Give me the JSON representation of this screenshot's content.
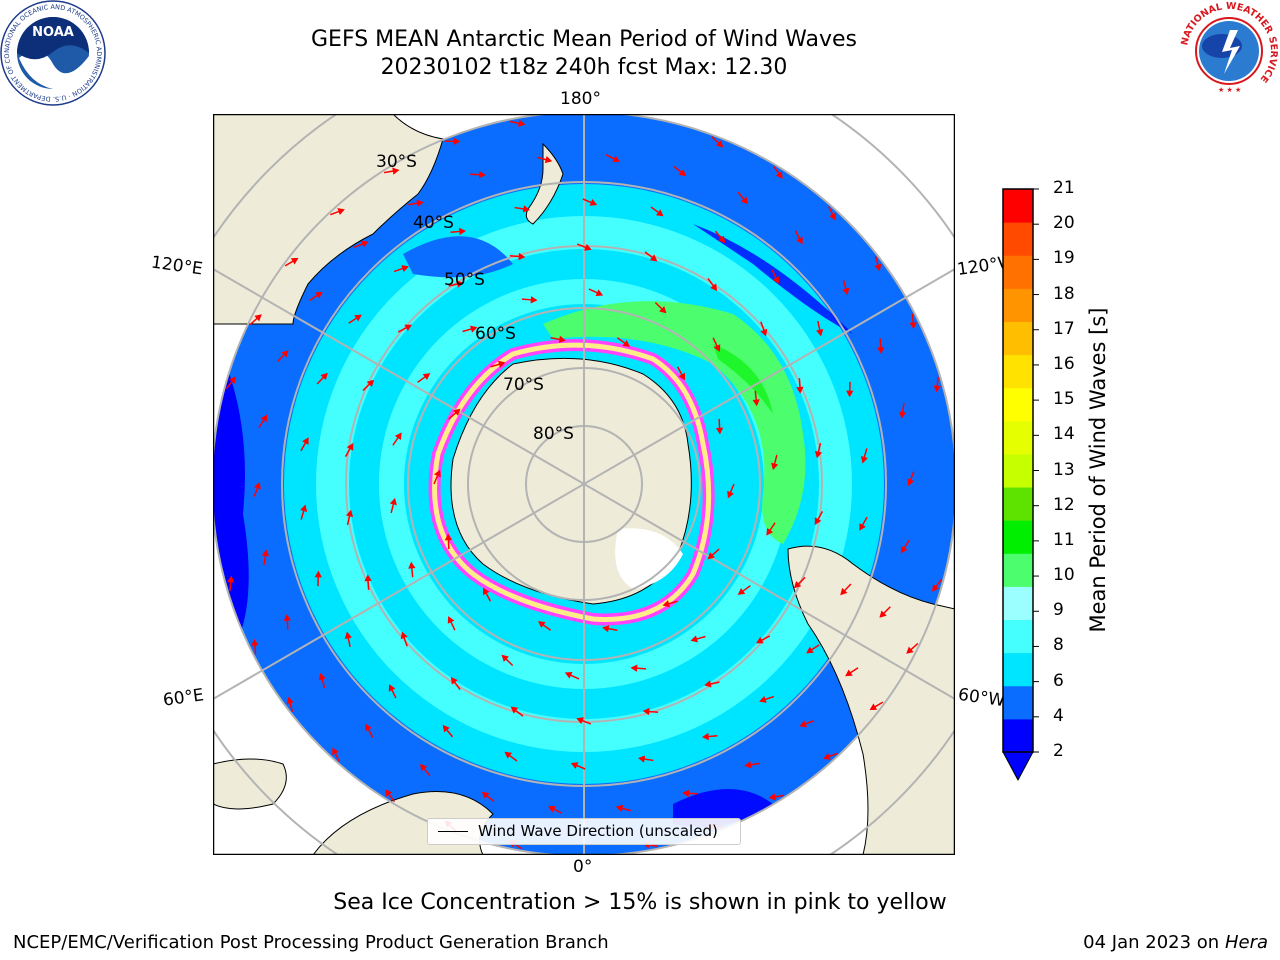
{
  "header": {
    "title_line1": "GEFS MEAN Antarctic Mean Period of Wind Waves",
    "title_line2": "20230102 t18z 240h fcst   Max: 12.30",
    "noaa_logo_text": "NOAA",
    "noaa_logo_ring_text": "NATIONAL OCEANIC AND ATMOSPHERIC ADMINISTRATION · U.S. DEPARTMENT OF COMMERCE",
    "nws_logo_ring_text": "NATIONAL WEATHER SERVICE"
  },
  "map": {
    "projection": "south polar stereographic",
    "longitude_labels": {
      "top": "180°",
      "bottom": "0°",
      "upper_left": "120°E",
      "upper_right": "120°W",
      "lower_left": "60°E",
      "lower_right": "60°W"
    },
    "latitude_labels": [
      "30°S",
      "40°S",
      "50°S",
      "60°S",
      "70°S",
      "80°S"
    ],
    "legend_label": "Wind Wave Direction (unscaled)",
    "colors": {
      "land": "#eeecd9",
      "ocean_outside": "#ffffff",
      "graticule": "#b3b3b3",
      "arrow": "#ff0000",
      "ice_edge_pink": "#ff44ff",
      "ice_edge_yellow": "#ffee88"
    }
  },
  "colorbar": {
    "label": "Mean Period of Wind Waves [s]",
    "ticks": [
      "2",
      "4",
      "6",
      "8",
      "9",
      "10",
      "11",
      "12",
      "13",
      "14",
      "15",
      "16",
      "17",
      "18",
      "19",
      "20",
      "21"
    ],
    "colors": [
      "#0000ff",
      "#0b6dff",
      "#00e5ff",
      "#45ffff",
      "#9cffff",
      "#4cfe6d",
      "#00ee00",
      "#5ee300",
      "#c6ff00",
      "#e6ff00",
      "#ffff00",
      "#ffe200",
      "#ffbf00",
      "#ff9400",
      "#ff7100",
      "#ff4a00",
      "#ff0000"
    ],
    "extend_min_color": "#0000ff"
  },
  "subtitle": "Sea Ice Concentration > 15% is shown in pink to yellow",
  "footer": {
    "left": "NCEP/EMC/Verification Post Processing Product Generation Branch",
    "right_date": "04 Jan 2023 on ",
    "right_host": "Hera"
  }
}
